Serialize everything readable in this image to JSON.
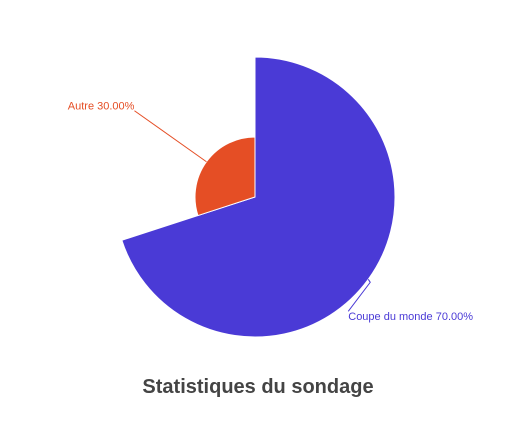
{
  "chart_data": {
    "type": "rose",
    "title": "Statistiques du sondage",
    "values": [
      70,
      30
    ],
    "value_labels": [
      "Coupe du monde 70.00%",
      "Autre 30.00%"
    ],
    "colors": [
      "#4a3ad6",
      "#e54e25"
    ]
  }
}
